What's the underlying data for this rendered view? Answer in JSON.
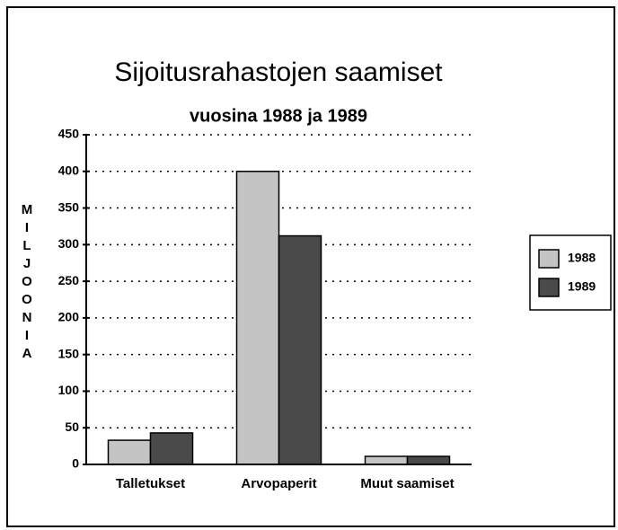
{
  "chart_data": {
    "type": "bar",
    "title": "Sijoitusrahastojen saamiset",
    "subtitle": "vuosina 1988 ja 1989",
    "y_label": "MILJOONIA",
    "categories": [
      "Talletukset",
      "Arvopaperit",
      "Muut saamiset"
    ],
    "series": [
      {
        "name": "1988",
        "color": "#c4c4c4",
        "values": [
          33,
          400,
          11
        ]
      },
      {
        "name": "1989",
        "color": "#4a4a4a",
        "values": [
          43,
          312,
          11
        ]
      }
    ],
    "ylim": [
      0,
      450
    ],
    "yticks": [
      0,
      50,
      100,
      150,
      200,
      250,
      300,
      350,
      400,
      450
    ],
    "grid": true,
    "legend": "right"
  }
}
